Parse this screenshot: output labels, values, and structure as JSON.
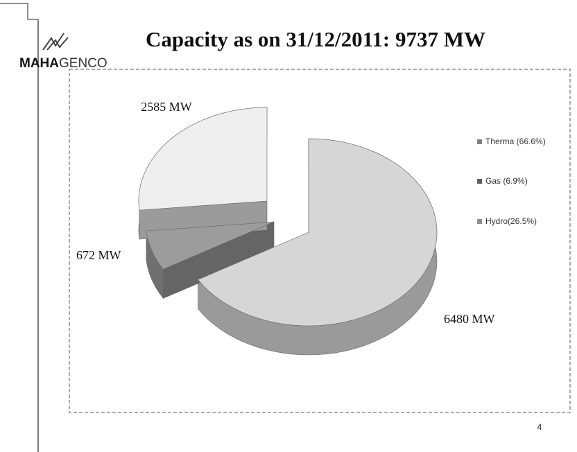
{
  "logo": {
    "bold": "MAHA",
    "light": "GENCO"
  },
  "page_number": "4",
  "chart_data": {
    "type": "pie",
    "title": "Capacity as on 31/12/2011: 9737 MW",
    "categories": [
      "Therma (66.6%)",
      "Gas (6.9%)",
      "Hydro(26.5%)"
    ],
    "values": [
      6480,
      672,
      2585
    ],
    "value_labels": [
      "6480 MW",
      "672 MW",
      "2585 MW"
    ],
    "colors": [
      "#d6d6d6",
      "#9c9c9c",
      "#eeeeee"
    ],
    "legend": "right"
  }
}
